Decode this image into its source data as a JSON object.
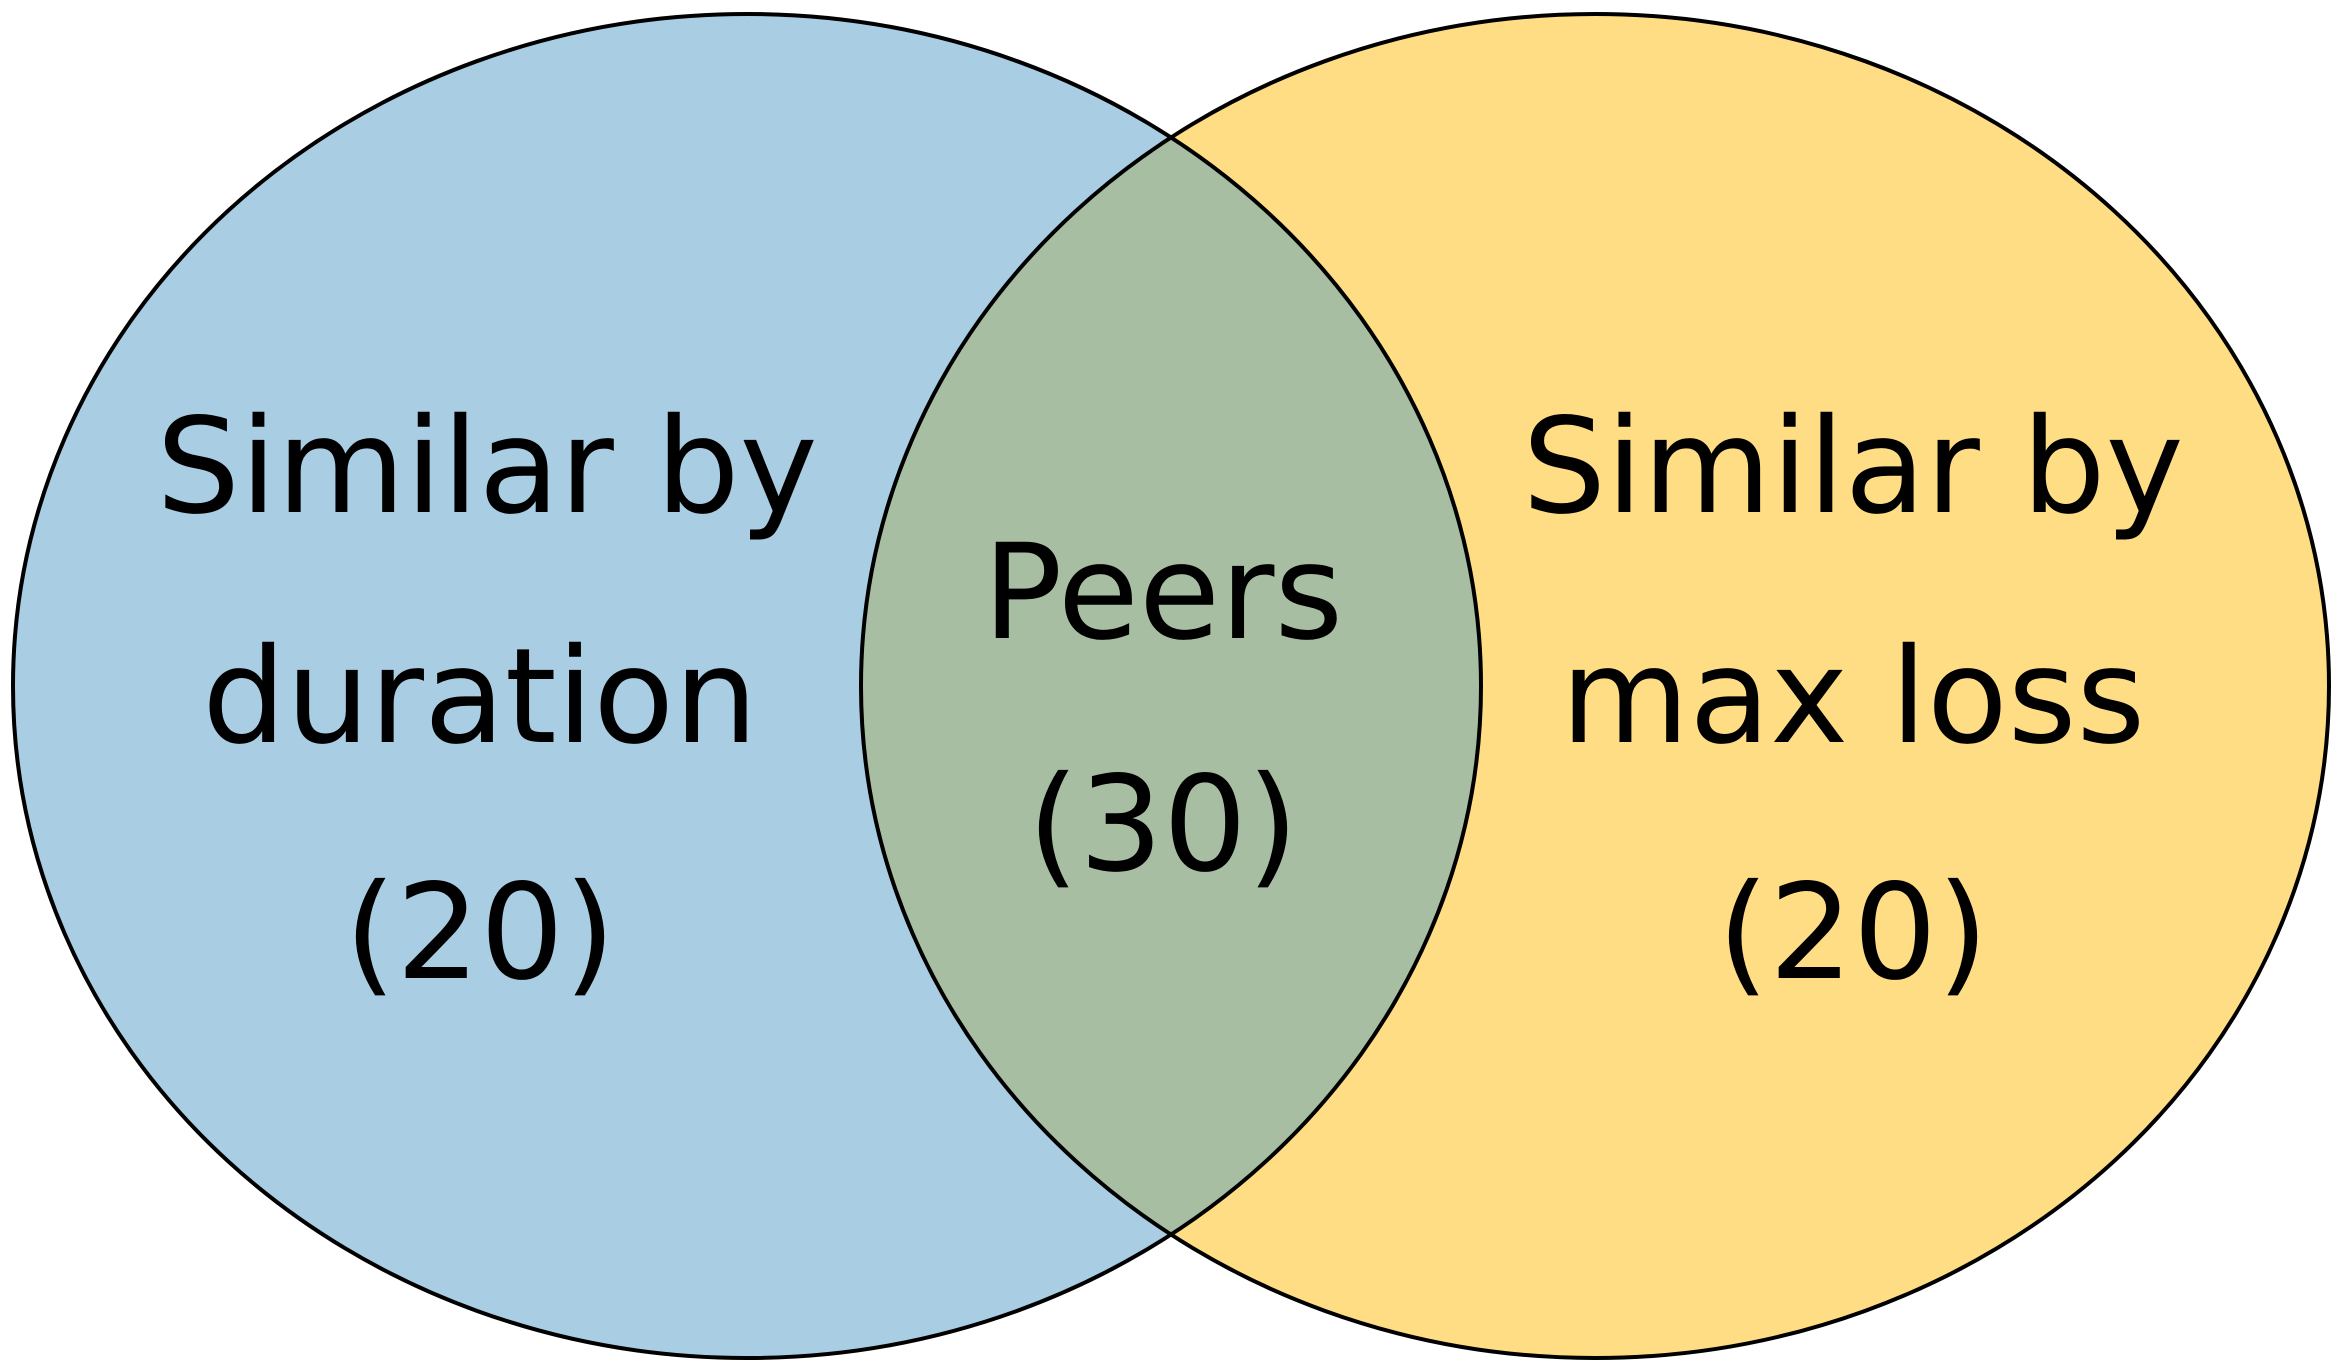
{
  "diagram": {
    "type": "venn",
    "colors": {
      "left": "#a9cde3",
      "right": "#fedd85",
      "overlap": "#a8bea2",
      "stroke": "#000000"
    },
    "left": {
      "line1": "Similar by",
      "line2": "duration",
      "count": "(20)"
    },
    "right": {
      "line1": "Similar by",
      "line2": "max loss",
      "count": "(20)"
    },
    "overlap": {
      "line1": "Peers",
      "count": "(30)"
    }
  }
}
